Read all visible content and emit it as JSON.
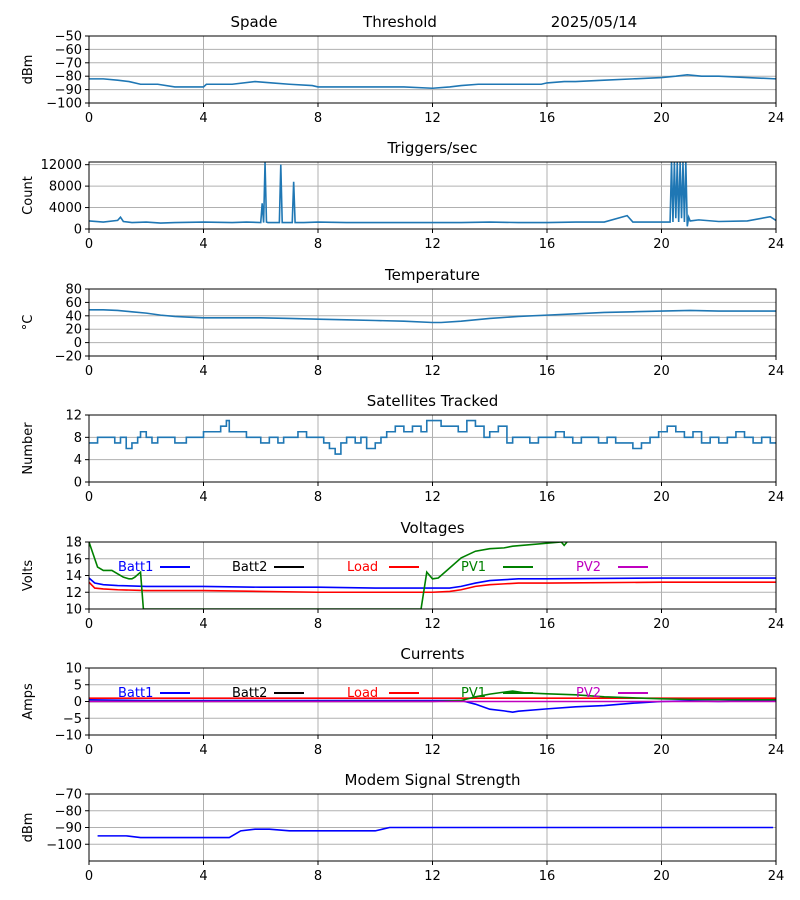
{
  "header": {
    "station": "Spade",
    "mode": "Threshold",
    "date": "2025/05/14"
  },
  "colors": {
    "default_line": "#1f77b4",
    "grid": "#b0b0b0"
  },
  "chart_data": [
    {
      "id": "threshold",
      "type": "line",
      "title": "",
      "ylabel": "dBm",
      "xlim": [
        0,
        24
      ],
      "xticks": [
        0,
        4,
        8,
        12,
        16,
        20,
        24
      ],
      "ylim": [
        -100,
        -50
      ],
      "yticks": [
        -100,
        -90,
        -80,
        -70,
        -60,
        -50
      ],
      "ytick_labels": [
        "−100",
        "−90",
        "−80",
        "−70",
        "−60",
        "−50"
      ],
      "grid": true,
      "legend": "none",
      "series": [
        {
          "color": "#1f77b4",
          "x": [
            0,
            0.5,
            1,
            1.4,
            1.8,
            2.4,
            3,
            3.5,
            4,
            4.1,
            5,
            5.8,
            6.4,
            7,
            7.8,
            8,
            8.6,
            9,
            10,
            11,
            12,
            12.6,
            13,
            13.6,
            14,
            15,
            15.8,
            16,
            16.6,
            17,
            18,
            19,
            20,
            20.5,
            20.9,
            21.4,
            22,
            23,
            24
          ],
          "y": [
            -82,
            -82,
            -83,
            -84,
            -86,
            -86,
            -88,
            -88,
            -88,
            -86,
            -86,
            -84,
            -85,
            -86,
            -87,
            -88,
            -88,
            -88,
            -88,
            -88,
            -89,
            -88,
            -87,
            -86,
            -86,
            -86,
            -86,
            -85,
            -84,
            -84,
            -83,
            -82,
            -81,
            -80,
            -79,
            -80,
            -80,
            -81,
            -82
          ]
        }
      ]
    },
    {
      "id": "triggers",
      "type": "line",
      "title": "Triggers/sec",
      "ylabel": "Count",
      "xlim": [
        0,
        24
      ],
      "xticks": [
        0,
        4,
        8,
        12,
        16,
        20,
        24
      ],
      "ylim": [
        0,
        12500
      ],
      "yticks": [
        0,
        4000,
        8000,
        12000
      ],
      "ytick_labels": [
        "0",
        "4000",
        "8000",
        "12000"
      ],
      "grid": true,
      "legend": "none",
      "series": [
        {
          "color": "#1f77b4",
          "x": [
            0,
            0.5,
            1,
            1.1,
            1.2,
            1.5,
            2,
            2.5,
            3,
            4,
            5,
            5.5,
            6,
            6.05,
            6.1,
            6.15,
            6.2,
            6.25,
            6.3,
            6.65,
            6.7,
            6.75,
            6.8,
            7.1,
            7.15,
            7.2,
            7.5,
            8,
            9,
            10,
            11,
            12,
            13,
            14,
            15,
            16,
            17,
            18,
            18.8,
            19,
            20,
            20.3,
            20.35,
            20.4,
            20.45,
            20.5,
            20.55,
            20.6,
            20.65,
            20.7,
            20.75,
            20.8,
            20.85,
            20.9,
            20.95,
            21.0,
            21.3,
            22,
            23,
            23.8,
            24
          ],
          "y": [
            1500,
            1300,
            1600,
            2200,
            1400,
            1200,
            1300,
            1100,
            1200,
            1300,
            1200,
            1300,
            1200,
            4800,
            1200,
            12400,
            1300,
            1200,
            1200,
            1200,
            12000,
            1200,
            1200,
            1200,
            8800,
            1200,
            1200,
            1300,
            1200,
            1200,
            1200,
            1200,
            1200,
            1300,
            1200,
            1200,
            1300,
            1300,
            2500,
            1300,
            1300,
            1300,
            12400,
            1300,
            12400,
            2000,
            12400,
            1300,
            12400,
            2000,
            12400,
            1300,
            12400,
            500,
            2200,
            1500,
            1700,
            1400,
            1500,
            2300,
            1600
          ]
        }
      ]
    },
    {
      "id": "temperature",
      "type": "line",
      "title": "Temperature",
      "ylabel": "°C",
      "xlim": [
        0,
        24
      ],
      "xticks": [
        0,
        4,
        8,
        12,
        16,
        20,
        24
      ],
      "ylim": [
        -20,
        80
      ],
      "yticks": [
        -20,
        0,
        20,
        40,
        60,
        80
      ],
      "ytick_labels": [
        "−20",
        "0",
        "20",
        "40",
        "60",
        "80"
      ],
      "grid": true,
      "legend": "none",
      "series": [
        {
          "color": "#1f77b4",
          "x": [
            0,
            0.5,
            1,
            1.5,
            2,
            2.5,
            3,
            3.5,
            4,
            5,
            6,
            7,
            8,
            9,
            10,
            11,
            12,
            12.3,
            13,
            14,
            15,
            16,
            17,
            18,
            19,
            20,
            21,
            22,
            23,
            24
          ],
          "y": [
            49,
            49,
            48,
            46,
            44,
            41,
            39,
            38,
            37,
            37,
            37,
            36,
            35,
            34,
            33,
            32,
            30,
            30,
            32,
            36,
            39,
            41,
            43,
            45,
            46,
            47,
            48,
            47,
            47,
            47
          ]
        }
      ]
    },
    {
      "id": "satellites",
      "type": "line",
      "title": "Satellites Tracked",
      "ylabel": "Number",
      "xlim": [
        0,
        24
      ],
      "xticks": [
        0,
        4,
        8,
        12,
        16,
        20,
        24
      ],
      "ylim": [
        0,
        12
      ],
      "yticks": [
        0,
        4,
        8,
        12
      ],
      "ytick_labels": [
        "0",
        "4",
        "8",
        "12"
      ],
      "grid": true,
      "legend": "none",
      "series": [
        {
          "color": "#1f77b4",
          "step": true,
          "x": [
            0,
            0.3,
            0.6,
            0.9,
            1.1,
            1.3,
            1.5,
            1.7,
            1.8,
            2.0,
            2.2,
            2.4,
            2.8,
            3.0,
            3.4,
            3.8,
            4.0,
            4.3,
            4.6,
            4.8,
            4.9,
            5.2,
            5.5,
            5.8,
            6.0,
            6.3,
            6.6,
            6.8,
            7.0,
            7.3,
            7.6,
            7.9,
            8.2,
            8.4,
            8.6,
            8.8,
            9.0,
            9.3,
            9.5,
            9.7,
            10.0,
            10.2,
            10.4,
            10.7,
            11.0,
            11.3,
            11.6,
            11.8,
            12.0,
            12.3,
            12.6,
            12.9,
            13.2,
            13.5,
            13.8,
            14.0,
            14.3,
            14.6,
            14.8,
            15.1,
            15.4,
            15.7,
            16.0,
            16.3,
            16.6,
            16.9,
            17.2,
            17.5,
            17.8,
            18.1,
            18.4,
            18.7,
            19.0,
            19.3,
            19.6,
            19.9,
            20.2,
            20.5,
            20.8,
            21.1,
            21.4,
            21.7,
            22.0,
            22.3,
            22.6,
            22.9,
            23.2,
            23.5,
            23.8,
            24
          ],
          "y": [
            7,
            8,
            8,
            7,
            8,
            6,
            7,
            8,
            9,
            8,
            7,
            8,
            8,
            7,
            8,
            8,
            9,
            9,
            10,
            11,
            9,
            9,
            8,
            8,
            7,
            8,
            7,
            8,
            8,
            9,
            8,
            8,
            7,
            6,
            5,
            7,
            8,
            7,
            8,
            6,
            7,
            8,
            9,
            10,
            9,
            10,
            9,
            11,
            11,
            10,
            10,
            9,
            11,
            10,
            8,
            9,
            10,
            7,
            8,
            8,
            7,
            8,
            8,
            9,
            8,
            7,
            8,
            8,
            7,
            8,
            7,
            7,
            6,
            7,
            8,
            9,
            10,
            9,
            8,
            9,
            7,
            8,
            7,
            8,
            9,
            8,
            7,
            8,
            7,
            7
          ]
        }
      ]
    },
    {
      "id": "voltages",
      "type": "line",
      "title": "Voltages",
      "ylabel": "Volts",
      "xlim": [
        0,
        24
      ],
      "xticks": [
        0,
        4,
        8,
        12,
        16,
        20,
        24
      ],
      "ylim": [
        10,
        18
      ],
      "yticks": [
        10,
        12,
        14,
        16,
        18
      ],
      "ytick_labels": [
        "10",
        "12",
        "14",
        "16",
        "18"
      ],
      "grid": true,
      "legend": "top, single row",
      "series": [
        {
          "name": "Batt1",
          "color": "#0000ff",
          "x": [
            0,
            0.2,
            0.5,
            1,
            2,
            4,
            6,
            8,
            10,
            11,
            12,
            12.6,
            13,
            13.5,
            14,
            14.5,
            15,
            16,
            20,
            24
          ],
          "y": [
            13.7,
            13.1,
            12.9,
            12.8,
            12.7,
            12.7,
            12.6,
            12.6,
            12.5,
            12.5,
            12.5,
            12.5,
            12.7,
            13.1,
            13.4,
            13.5,
            13.6,
            13.6,
            13.7,
            13.7
          ]
        },
        {
          "name": "Batt2",
          "color": "#000000",
          "x": [],
          "y": []
        },
        {
          "name": "Load",
          "color": "#ff0000",
          "x": [
            0,
            0.2,
            0.5,
            1,
            2,
            4,
            6,
            8,
            10,
            12,
            12.6,
            13,
            13.5,
            14,
            14.5,
            15,
            16,
            20,
            24
          ],
          "y": [
            13.2,
            12.5,
            12.4,
            12.3,
            12.2,
            12.2,
            12.1,
            12.0,
            12.0,
            12.0,
            12.1,
            12.3,
            12.7,
            12.9,
            13.0,
            13.1,
            13.1,
            13.2,
            13.2
          ]
        },
        {
          "name": "PV1",
          "color": "#008000",
          "x": [
            0,
            0.3,
            0.5,
            0.8,
            1.0,
            1.2,
            1.4,
            1.5,
            1.6,
            1.8,
            1.9,
            11.6,
            11.8,
            12.0,
            12.2,
            12.5,
            13.0,
            13.5,
            14.0,
            14.5,
            14.8,
            16.5,
            16.6,
            16.7
          ],
          "y": [
            18.0,
            15.0,
            14.6,
            14.6,
            14.2,
            13.8,
            13.6,
            13.6,
            13.8,
            14.4,
            10.0,
            10.0,
            14.4,
            13.6,
            13.7,
            14.6,
            16.1,
            16.9,
            17.2,
            17.3,
            17.5,
            18.0,
            17.6,
            18.0
          ]
        },
        {
          "name": "PV2",
          "color": "#bf00bf",
          "x": [],
          "y": []
        }
      ]
    },
    {
      "id": "currents",
      "type": "line",
      "title": "Currents",
      "ylabel": "Amps",
      "xlim": [
        0,
        24
      ],
      "xticks": [
        0,
        4,
        8,
        12,
        16,
        20,
        24
      ],
      "ylim": [
        -10,
        10
      ],
      "yticks": [
        -10,
        -5,
        0,
        5,
        10
      ],
      "ytick_labels": [
        "−10",
        "−5",
        "0",
        "5",
        "10"
      ],
      "grid": true,
      "legend": "top, single row",
      "series": [
        {
          "name": "Batt1",
          "color": "#0000ff",
          "x": [
            0,
            2,
            4,
            8,
            12,
            13,
            13.5,
            14,
            14.5,
            14.8,
            15,
            16,
            17,
            18,
            19,
            20,
            21,
            22,
            23,
            24
          ],
          "y": [
            0.5,
            0.3,
            0.3,
            0.3,
            0.3,
            0.3,
            -0.8,
            -2.3,
            -2.8,
            -3.2,
            -2.9,
            -2.2,
            -1.6,
            -1.2,
            -0.5,
            0.0,
            0.2,
            0.0,
            0.2,
            0.3
          ]
        },
        {
          "name": "Batt2",
          "color": "#000000",
          "x": [],
          "y": []
        },
        {
          "name": "Load",
          "color": "#ff0000",
          "x": [
            0,
            4,
            8,
            12,
            16,
            20,
            24
          ],
          "y": [
            1.0,
            1.0,
            1.0,
            1.0,
            1.0,
            1.0,
            1.0
          ]
        },
        {
          "name": "PV1",
          "color": "#008000",
          "x": [
            0,
            12,
            13,
            13.5,
            14,
            14.5,
            14.8,
            15.2,
            16,
            17,
            17.5,
            18,
            19,
            20,
            21,
            24
          ],
          "y": [
            0.0,
            0.0,
            0.3,
            1.4,
            2.2,
            2.8,
            3.1,
            2.6,
            2.3,
            2.0,
            1.7,
            1.4,
            1.1,
            0.8,
            0.6,
            0.5
          ]
        },
        {
          "name": "PV2",
          "color": "#bf00bf",
          "x": [
            0,
            24
          ],
          "y": [
            0.0,
            0.0
          ]
        }
      ]
    },
    {
      "id": "modem",
      "type": "line",
      "title": "Modem Signal Strength",
      "ylabel": "dBm",
      "xlim": [
        0,
        24
      ],
      "xticks": [
        0,
        4,
        8,
        12,
        16,
        20,
        24
      ],
      "ylim": [
        -110,
        -70
      ],
      "yticks": [
        -100,
        -90,
        -80,
        -70
      ],
      "ytick_labels": [
        "−100",
        "−90",
        "−80",
        "−70"
      ],
      "grid": true,
      "legend": "none",
      "series": [
        {
          "color": "#0000ff",
          "x": [
            0.3,
            1.3,
            1.8,
            3.5,
            4.9,
            5.3,
            5.8,
            6.3,
            7.0,
            8,
            9,
            10,
            10.5,
            12,
            16,
            20,
            23.9
          ],
          "y": [
            -95,
            -95,
            -96,
            -96,
            -96,
            -92,
            -91,
            -91,
            -92,
            -92,
            -92,
            -92,
            -90,
            -90,
            -90,
            -90,
            -90
          ]
        }
      ]
    }
  ]
}
